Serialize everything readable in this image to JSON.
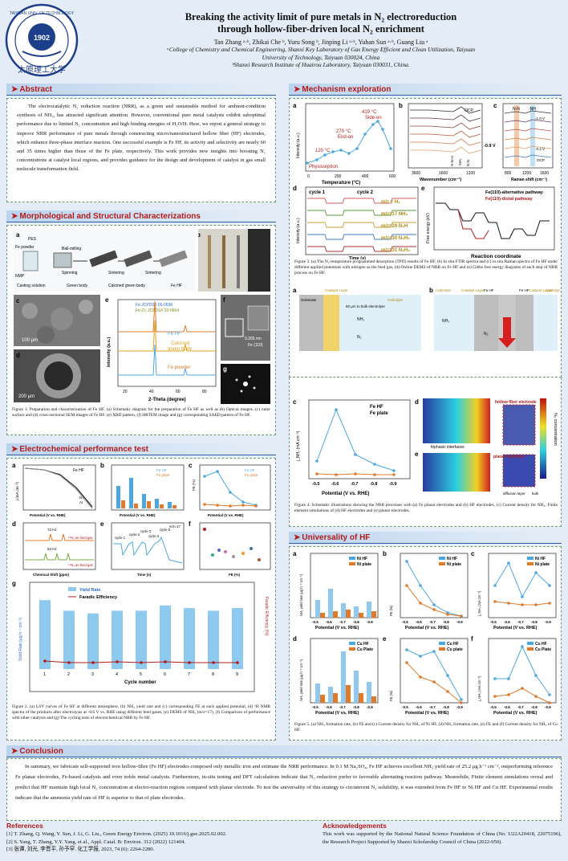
{
  "header": {
    "title_line1": "Breaking the activity limit of pure metals in N₂ electroreduction",
    "title_line2": "through hollow-fiber-driven local N₂ enrichment",
    "authors": "Tan Zhang ᵃ·ᵇ, Zhikai Che ᵇ, Yuru Song ᵇ, Jinping Li ᵃ·ᵇ, Yuhan Sun ᵃ·ᵇ, Guang Liu ᵃ",
    "aff_a1": "ᵃCollege of Chemistry and Chemical Engineering, Shanxi Key Laboratory of Gas Energy Efficient and Clean Utilization, Taiyuan",
    "aff_a2": "University of Technology, Taiyuan 030024, China",
    "aff_b": "ᵇShanxi Research Institute of Huairou Laboratory, Taiyuan 030031, China.",
    "logo_year": "1902",
    "logo_text": "TAIYUAN UNIVERSITY OF TECHNOLOGY",
    "logo_chinese": "太原理工大学"
  },
  "sections": {
    "abstract": "Abstract",
    "morph": "Morphological and Structural Characterizations",
    "electro": "Electrochemical performance test",
    "mech": "Mechanism exploration",
    "univ": "Universality of HF",
    "concl": "Conclusion"
  },
  "abstract_text": "The electrocatalytic N₂ reduction reaction (NRR), as a green and sustainable method for ambient-condition synthesis of NH₃, has attracted significant attention. However, conventional pure metal catalysts exhibit suboptimal performance due to limited N₂ concentration and high binding energies of H₂O/H. Here, we report a general strategy to improve NRR performance of pure metals through constructing micro/nanostructured hollow fiber (HF) electrodes, which enhance three-phase interface reaction. One successful example is Fe HF, its activity and selectivity are nearly 60 and 35 times higher than those of the Fe plate, respectively. This work provides new insights into boosting N₂ concentrations at catalyst local regions, and provides guidance for the design and development of catalyst in gas small molecule transformation field.",
  "captions": {
    "fig1": "Figure 1. Preparation and characterization of Fe HF. (a) Schematic diagram for the preparation of Fe HF as well as (b) Optical images. (c) outer surface and (d) cross-sectional SEM images of Fe HF. (e) XRD pattern, (f) HRTEM image and (g) corresponding SAED pattern of Fe HF.",
    "fig2": "Figure 2. (a) LSV curves of Fe HF at different atmosphere, (b) NH₃ yield rate and (c) corresponding FE at each applied potential, (d) ¹H NMR spectra of the products after electrolysis at -0.6 V vs. RHE using different feed gases, (e) DEMS of NH₃ (m/z=17), (f) Comparison of performance with other catalysts and (g) The cycling tests of electrochemical NRR by Fe HF.",
    "fig3": "Figure 3. (a) The N₂-temperature programmed desorption (TPD) results of Fe HF, (b) In situ FTIR spectra and (c) in situ Raman spectra of Fe HF under different applied potentials with nitrogen as the feed gas, (d) Online DEMS of NRR on Fe HF and (e) Gibbs free energy diagrams of each step of NRR process on Fe HF.",
    "fig4": "Figure 4. Schematic illustrations showing the NRR processes with (a) Fe planar electrodes and (b) HF electrodes, (c) Current density for NH₃, Finite element simulations of (d) HF electrodes and (e) planar electrodes.",
    "fig5": "Figure 5. (a) NH₃ formation rate, (b) FE and (c) Current density for NH₃ of Ni HF, (d) NH₃ formation rate, (e) FE and (f) Current density for NH₃ of Cu HF."
  },
  "fig1": {
    "a": "a",
    "b": "b",
    "c": "c",
    "d": "d",
    "e": "e",
    "f": "f",
    "g": "g",
    "steps": [
      "PES",
      "Fe powder",
      "NMP",
      "Ball-milling",
      "Spinning",
      "Sintering",
      "Sintering"
    ],
    "stages": [
      "Casting solution",
      "Green body",
      "Calcined green body",
      "Fe HF"
    ],
    "scale_c": "100 μm",
    "scale_d": "200 μm",
    "lattice": "0.265 nm",
    "lattice_plane": "Fe (110)",
    "xrd_legend1": "Fe   JCPDS# 06-0696",
    "xrd_legend2": "Fe₂O₃  JCPDS# 33-0664",
    "xrd_labels": [
      "Fe HF",
      "Calcined",
      "green body",
      "Fe powder"
    ],
    "xrd_x": "2-Theta (degree)",
    "xrd_y": "Intensity (a.u.)",
    "xrd_ticks": [
      "20",
      "40",
      "60",
      "80"
    ]
  },
  "fig2": {
    "labels": [
      "a",
      "b",
      "c",
      "d",
      "e",
      "f",
      "g"
    ],
    "a_title": "Fe HF",
    "a_legend": [
      "N₂",
      "Ar"
    ],
    "a_x": "Potential (V vs. RHE)",
    "a_y": "j (mA cm⁻²)",
    "b_legend": [
      "Fe HF",
      "Fe plate"
    ],
    "b_x": "Potential (V vs. RHE)",
    "c_legend": [
      "Fe HF",
      "Fe plate"
    ],
    "c_x": "Potential (V vs. RHE)",
    "c_y": "FE (%)",
    "d_notes": [
      "72 Hz",
      "52 Hz",
      "¹⁵N₂ as feed gas",
      "¹⁴N₂ as feed gas"
    ],
    "d_x": "Chemical Shift (ppm)",
    "e_notes": [
      "cycle 1",
      "cycle 2",
      "cycle 3",
      "cycle 4",
      "cycle 5",
      "m/z=17"
    ],
    "e_x": "Time (s)",
    "f_x": "FE (%)",
    "g_legend": [
      "Yield Rate",
      "Faradic Efficiency"
    ],
    "g_x": "Cycle number",
    "g_y": "Yield Rate (μg h⁻¹ cm⁻²)",
    "g_y2": "Faradic Efficiency (%)",
    "g_ticks": [
      "1",
      "2",
      "3",
      "4",
      "5",
      "6",
      "7",
      "8",
      "9"
    ]
  },
  "fig3": {
    "labels": [
      "a",
      "b",
      "c",
      "d",
      "e"
    ],
    "a_notes": [
      "419 °C",
      "Side-on",
      "270 °C",
      "End-on",
      "120 °C",
      "Physisorption"
    ],
    "a_x": "Temperature (°C)",
    "a_y": "Intensity (a.u.)",
    "a_ticks": [
      "0",
      "200",
      "400",
      "600"
    ],
    "b_notes": [
      "OCP",
      "-0.9 V",
      "H-N-H",
      "-NH₂",
      "N-N"
    ],
    "b_x": "Wavenumber (cm⁻¹)",
    "b_ticks": [
      "3600",
      "1600",
      "1200"
    ],
    "c_notes": [
      "N-N",
      "-NH",
      "-1.0 V",
      "-0.4 V",
      "OCP"
    ],
    "c_x": "Raman shift (cm⁻¹)",
    "c_ticks": [
      "800",
      "1200",
      "1600"
    ],
    "d_notes": [
      "cycle 1",
      "cycle 2",
      "m/z = H₂",
      "m/z=17 NH₃",
      "m/z=29 N₂H",
      "m/z=30 N₂H₂",
      "m/z=31 N₂H₃"
    ],
    "d_x": "Time (s)",
    "d_y": "Intensity (a.u.)",
    "e_legend": [
      "Fe(110)-alternative pathway",
      "Fe(110)-distal pathway"
    ],
    "e_x": "Reaction coordinate",
    "e_y": "Free energy (eV)"
  },
  "fig4": {
    "labels": [
      "a",
      "b",
      "c",
      "d",
      "e"
    ],
    "a_notes": [
      "Substrate",
      "Catalyst Layer",
      "Catholyte",
      "50 μm to bulk electrolyte",
      "NH₃",
      "N₂"
    ],
    "b_notes": [
      "Catholyte",
      "Catalyst Layer",
      "Fe HF",
      "Fe HF",
      "Catalyst Layer",
      "Catholyte",
      "NH₃",
      "N₂",
      "epoxy"
    ],
    "c_legend": [
      "Fe HF",
      "Fe plate"
    ],
    "c_x": "Potential (V vs. RHE)",
    "c_y": "j_NH₃ (mA cm⁻²)",
    "c_ticks": [
      "-0.5",
      "-0.6",
      "-0.7",
      "-0.8",
      "-0.9"
    ],
    "d_notes": [
      "hollow fiber electrode",
      "triphasic interfaces"
    ],
    "e_notes": [
      "planar electrode",
      "diffusion layer",
      "bulk"
    ],
    "colorbar": "N₂ concentration"
  },
  "fig5": {
    "labels": [
      "a",
      "b",
      "c",
      "d",
      "e",
      "f"
    ],
    "ni_legend": [
      "Ni HF",
      "Ni plate"
    ],
    "cu_legend": [
      "Cu HF",
      "Cu Plate"
    ],
    "cu_legend2": [
      "Cu HF",
      "Cu plate"
    ],
    "x": "Potential (V vs. RHE)",
    "ticks": [
      "-0.5",
      "-0.6",
      "-0.7",
      "-0.8",
      "-0.9"
    ],
    "y_yield": "NH₃ yield rate (μg h⁻¹ cm⁻²)",
    "y_fe": "FE (%)",
    "y_j": "j_NH₃ (mA cm⁻²)"
  },
  "conclusion_text": "In summary, we fabricate self-supported iron hollow-fibre (Fe HF) electrodes composed only metallic iron and estimate the NRR performance. In 0.1 M Na₂SO₄, Fe HF achieves excellent NH₃ yield rate of 25.2 μg h⁻¹ cm⁻², outperforming reference Fe planar electrodes, Fe-based catalysts and even noble metal catalysts. Furthermore, in-situ testing and DFT calculations indicate that N₂ reduction prefer to favorable alternating reaction pathway. Meanwhile, Finite element simulations reveal and predict that HF maintain high local N₂ concentration at electro-reaction regions compared with planar electrode. To test the universality of this strategy to circumvent N₂ solubility, it was extended from Fe HF to Ni HF and Cu HF. Experimental results indicate that the ammonia yield rate of HF is superior to that of plate electrodes.",
  "references": {
    "title": "References",
    "items": [
      "[1] T. Zhang, Q. Wang, Y. Sun, J. Li, G. Liu., Green Energy Environ. (2025) 10.1016/j.gee.2025.02.002.",
      "[2] S. Yang, T. Zhang, Y.Y. Yang, et al., Appl. Catal. B: Environ. 312 (2022) 121404.",
      "[3] 张谭, 刘光, 李晋平, 孙予罕. 化工学报, 2023, 74 (6): 2264-2280."
    ]
  },
  "acknowledgements": {
    "title": "Acknowledgements",
    "text": "This work was supported by the National Natural Science Foundation of China (No. U22A20418, 22075196), the Research Project Supported by Shanxi Scholarship Council of China (2022-050)."
  },
  "colors": {
    "accent_red": "#b31b1b",
    "accent_blue": "#2c5ca8",
    "hf_blue": "#4aa8e0",
    "plate_orange": "#e07a2a"
  }
}
